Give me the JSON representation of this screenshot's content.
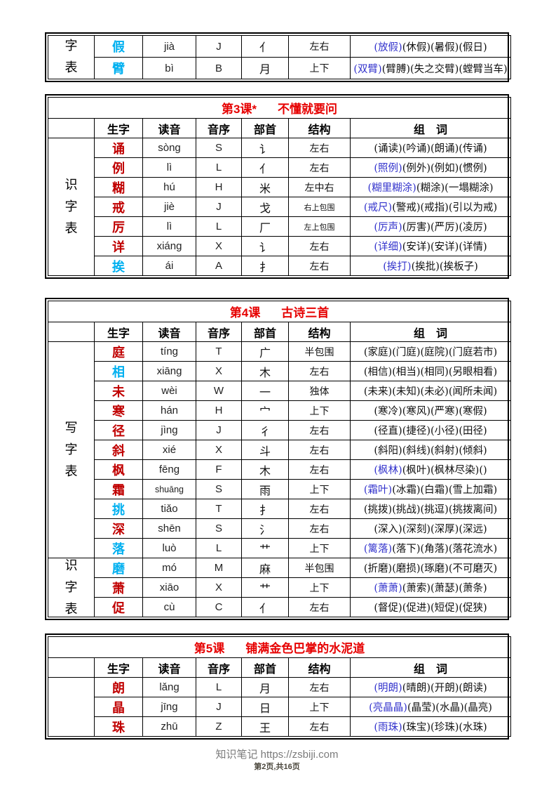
{
  "columns": [
    "生字",
    "读音",
    "音序",
    "部首",
    "结构",
    "组　词"
  ],
  "colors": {
    "char_red": "#c00000",
    "char_cyan": "#00b0f0",
    "word_blue": "#3333cc",
    "title_red": "#e60000"
  },
  "footer": {
    "site": "知识笔记 https://zsbiji.com",
    "page": "第2页,共16页"
  },
  "tables": [
    {
      "name": "table-continued",
      "title": null,
      "has_header": false,
      "label_groups": [
        {
          "text": "字表",
          "rows": 2
        }
      ],
      "rows": [
        {
          "char": "假",
          "char_color": "cyan",
          "pinyin": "jià",
          "initial": "J",
          "radical": "亻",
          "structure": "左右",
          "words": [
            {
              "text": "(放假)",
              "color": "blue"
            },
            {
              "text": "(休假)(暑假)(假日)",
              "color": "black"
            }
          ]
        },
        {
          "char": "臂",
          "char_color": "cyan",
          "pinyin": "bì",
          "initial": "B",
          "radical": "月",
          "structure": "上下",
          "words": [
            {
              "text": "(双臂)",
              "color": "blue"
            },
            {
              "text": "(臂膊)(失之交臂)(螳臂当车)",
              "color": "black"
            }
          ]
        }
      ]
    },
    {
      "name": "lesson-3",
      "title": {
        "lesson": "第3课*",
        "name": "不懂就要问"
      },
      "has_header": true,
      "label_groups": [
        {
          "text": "识字表",
          "rows": 7
        }
      ],
      "rows": [
        {
          "char": "诵",
          "char_color": "red",
          "pinyin": "sòng",
          "initial": "S",
          "radical": "讠",
          "structure": "左右",
          "words": [
            {
              "text": "(诵读)(吟诵)(朗诵)(传诵)",
              "color": "black"
            }
          ]
        },
        {
          "char": "例",
          "char_color": "red",
          "pinyin": "lì",
          "initial": "L",
          "radical": "亻",
          "structure": "左右",
          "words": [
            {
              "text": "(照例)",
              "color": "blue"
            },
            {
              "text": "(例外)(例如)(惯例)",
              "color": "black"
            }
          ]
        },
        {
          "char": "糊",
          "char_color": "red",
          "pinyin": "hú",
          "initial": "H",
          "radical": "米",
          "structure": "左中右",
          "words": [
            {
              "text": "(糊里糊涂)",
              "color": "blue"
            },
            {
              "text": "(糊涂)(一塌糊涂)",
              "color": "black"
            }
          ]
        },
        {
          "char": "戒",
          "char_color": "red",
          "pinyin": "jiè",
          "initial": "J",
          "radical": "戈",
          "structure": "右上包围",
          "words": [
            {
              "text": "(戒尺)",
              "color": "blue"
            },
            {
              "text": "(警戒)(戒指)(引以为戒)",
              "color": "black"
            }
          ]
        },
        {
          "char": "厉",
          "char_color": "red",
          "pinyin": "lì",
          "initial": "L",
          "radical": "厂",
          "structure": "左上包围",
          "words": [
            {
              "text": "(厉声)",
              "color": "blue"
            },
            {
              "text": "(厉害)(严厉)(凌厉)",
              "color": "black"
            }
          ]
        },
        {
          "char": "详",
          "char_color": "red",
          "pinyin": "xiáng",
          "initial": "X",
          "radical": "讠",
          "structure": "左右",
          "words": [
            {
              "text": "(详细)",
              "color": "blue"
            },
            {
              "text": "(安详)(安详)(详情)",
              "color": "black"
            }
          ]
        },
        {
          "char": "挨",
          "char_color": "cyan",
          "pinyin": "ái",
          "initial": "A",
          "radical": "扌",
          "structure": "左右",
          "words": [
            {
              "text": "(挨打)",
              "color": "blue"
            },
            {
              "text": "(挨批)(挨板子)",
              "color": "black"
            }
          ]
        }
      ]
    },
    {
      "name": "lesson-4",
      "title": {
        "lesson": "第4课",
        "name": "古诗三首"
      },
      "has_header": true,
      "label_groups": [
        {
          "text": "写字表",
          "rows": 11
        },
        {
          "text": "识字表",
          "rows": 3
        }
      ],
      "rows": [
        {
          "char": "庭",
          "char_color": "red",
          "pinyin": "tíng",
          "initial": "T",
          "radical": "广",
          "structure": "半包围",
          "words": [
            {
              "text": "(家庭)(门庭)(庭院)(门庭若市)",
              "color": "black"
            }
          ]
        },
        {
          "char": "相",
          "char_color": "cyan",
          "pinyin": "xiāng",
          "initial": "X",
          "radical": "木",
          "structure": "左右",
          "words": [
            {
              "text": "(相信)(相当)(相同)(另眼相看)",
              "color": "black"
            }
          ]
        },
        {
          "char": "未",
          "char_color": "red",
          "pinyin": "wèi",
          "initial": "W",
          "radical": "一",
          "structure": "独体",
          "words": [
            {
              "text": "(未来)(未知)(未必)(闻所未闻)",
              "color": "black"
            }
          ]
        },
        {
          "char": "寒",
          "char_color": "red",
          "pinyin": "hán",
          "initial": "H",
          "radical": "宀",
          "structure": "上下",
          "words": [
            {
              "text": "(寒冷)(寒风)(严寒)(寒假)",
              "color": "black"
            }
          ]
        },
        {
          "char": "径",
          "char_color": "red",
          "pinyin": "jìng",
          "initial": "J",
          "radical": "彳",
          "structure": "左右",
          "words": [
            {
              "text": "(径直)(捷径)(小径)(田径)",
              "color": "black"
            }
          ]
        },
        {
          "char": "斜",
          "char_color": "red",
          "pinyin": "xié",
          "initial": "X",
          "radical": "斗",
          "structure": "左右",
          "words": [
            {
              "text": "(斜阳)(斜线)(斜射)(倾斜)",
              "color": "black"
            }
          ]
        },
        {
          "char": "枫",
          "char_color": "red",
          "pinyin": "fēng",
          "initial": "F",
          "radical": "木",
          "structure": "左右",
          "words": [
            {
              "text": "(枫林)",
              "color": "blue"
            },
            {
              "text": "(枫叶)(枫林尽染)()",
              "color": "black"
            }
          ]
        },
        {
          "char": "霜",
          "char_color": "red",
          "pinyin": "shuāng",
          "initial": "S",
          "radical": "雨",
          "structure": "上下",
          "words": [
            {
              "text": "(霜叶)",
              "color": "blue"
            },
            {
              "text": "(冰霜)(白霜)(雪上加霜)",
              "color": "black"
            }
          ]
        },
        {
          "char": "挑",
          "char_color": "cyan",
          "pinyin": "tiǎo",
          "initial": "T",
          "radical": "扌",
          "structure": "左右",
          "words": [
            {
              "text": "(挑拨)(挑战)(挑逗)(挑拨离间)",
              "color": "black"
            }
          ]
        },
        {
          "char": "深",
          "char_color": "red",
          "pinyin": "shēn",
          "initial": "S",
          "radical": "氵",
          "structure": "左右",
          "words": [
            {
              "text": "(深入)(深刻)(深厚)(深远)",
              "color": "black"
            }
          ]
        },
        {
          "char": "落",
          "char_color": "cyan",
          "pinyin": "luò",
          "initial": "L",
          "radical": "艹",
          "structure": "上下",
          "words": [
            {
              "text": "(篱落)",
              "color": "blue"
            },
            {
              "text": "(落下)(角落)(落花流水)",
              "color": "black"
            }
          ]
        },
        {
          "char": "磨",
          "char_color": "cyan",
          "pinyin": "mó",
          "initial": "M",
          "radical": "麻",
          "structure": "半包围",
          "words": [
            {
              "text": "(折磨)(磨损)(琢磨)(不可磨灭)",
              "color": "black"
            }
          ]
        },
        {
          "char": "萧",
          "char_color": "red",
          "pinyin": "xiāo",
          "initial": "X",
          "radical": "艹",
          "structure": "上下",
          "words": [
            {
              "text": "(萧萧)",
              "color": "blue"
            },
            {
              "text": "(萧索)(萧瑟)(萧条)",
              "color": "black"
            }
          ]
        },
        {
          "char": "促",
          "char_color": "red",
          "pinyin": "cù",
          "initial": "C",
          "radical": "亻",
          "structure": "左右",
          "words": [
            {
              "text": "(督促)(促进)(短促)(促狭)",
              "color": "black"
            }
          ]
        }
      ]
    },
    {
      "name": "lesson-5",
      "title": {
        "lesson": "第5课",
        "name": "铺满金色巴掌的水泥道"
      },
      "has_header": true,
      "label_groups": [
        {
          "text": "",
          "rows": 3
        }
      ],
      "rows": [
        {
          "char": "朗",
          "char_color": "red",
          "pinyin": "lǎng",
          "initial": "L",
          "radical": "月",
          "structure": "左右",
          "words": [
            {
              "text": "(明朗)",
              "color": "blue"
            },
            {
              "text": "(晴朗)(开朗)(朗读)",
              "color": "black"
            }
          ]
        },
        {
          "char": "晶",
          "char_color": "red",
          "pinyin": "jīng",
          "initial": "J",
          "radical": "日",
          "structure": "上下",
          "words": [
            {
              "text": "(亮晶晶)",
              "color": "blue"
            },
            {
              "text": "(晶莹)(水晶)(晶亮)",
              "color": "black"
            }
          ]
        },
        {
          "char": "珠",
          "char_color": "red",
          "pinyin": "zhū",
          "initial": "Z",
          "radical": "王",
          "structure": "左右",
          "words": [
            {
              "text": "(雨珠)",
              "color": "blue"
            },
            {
              "text": "(珠宝)(珍珠)(水珠)",
              "color": "black"
            }
          ]
        }
      ]
    }
  ]
}
